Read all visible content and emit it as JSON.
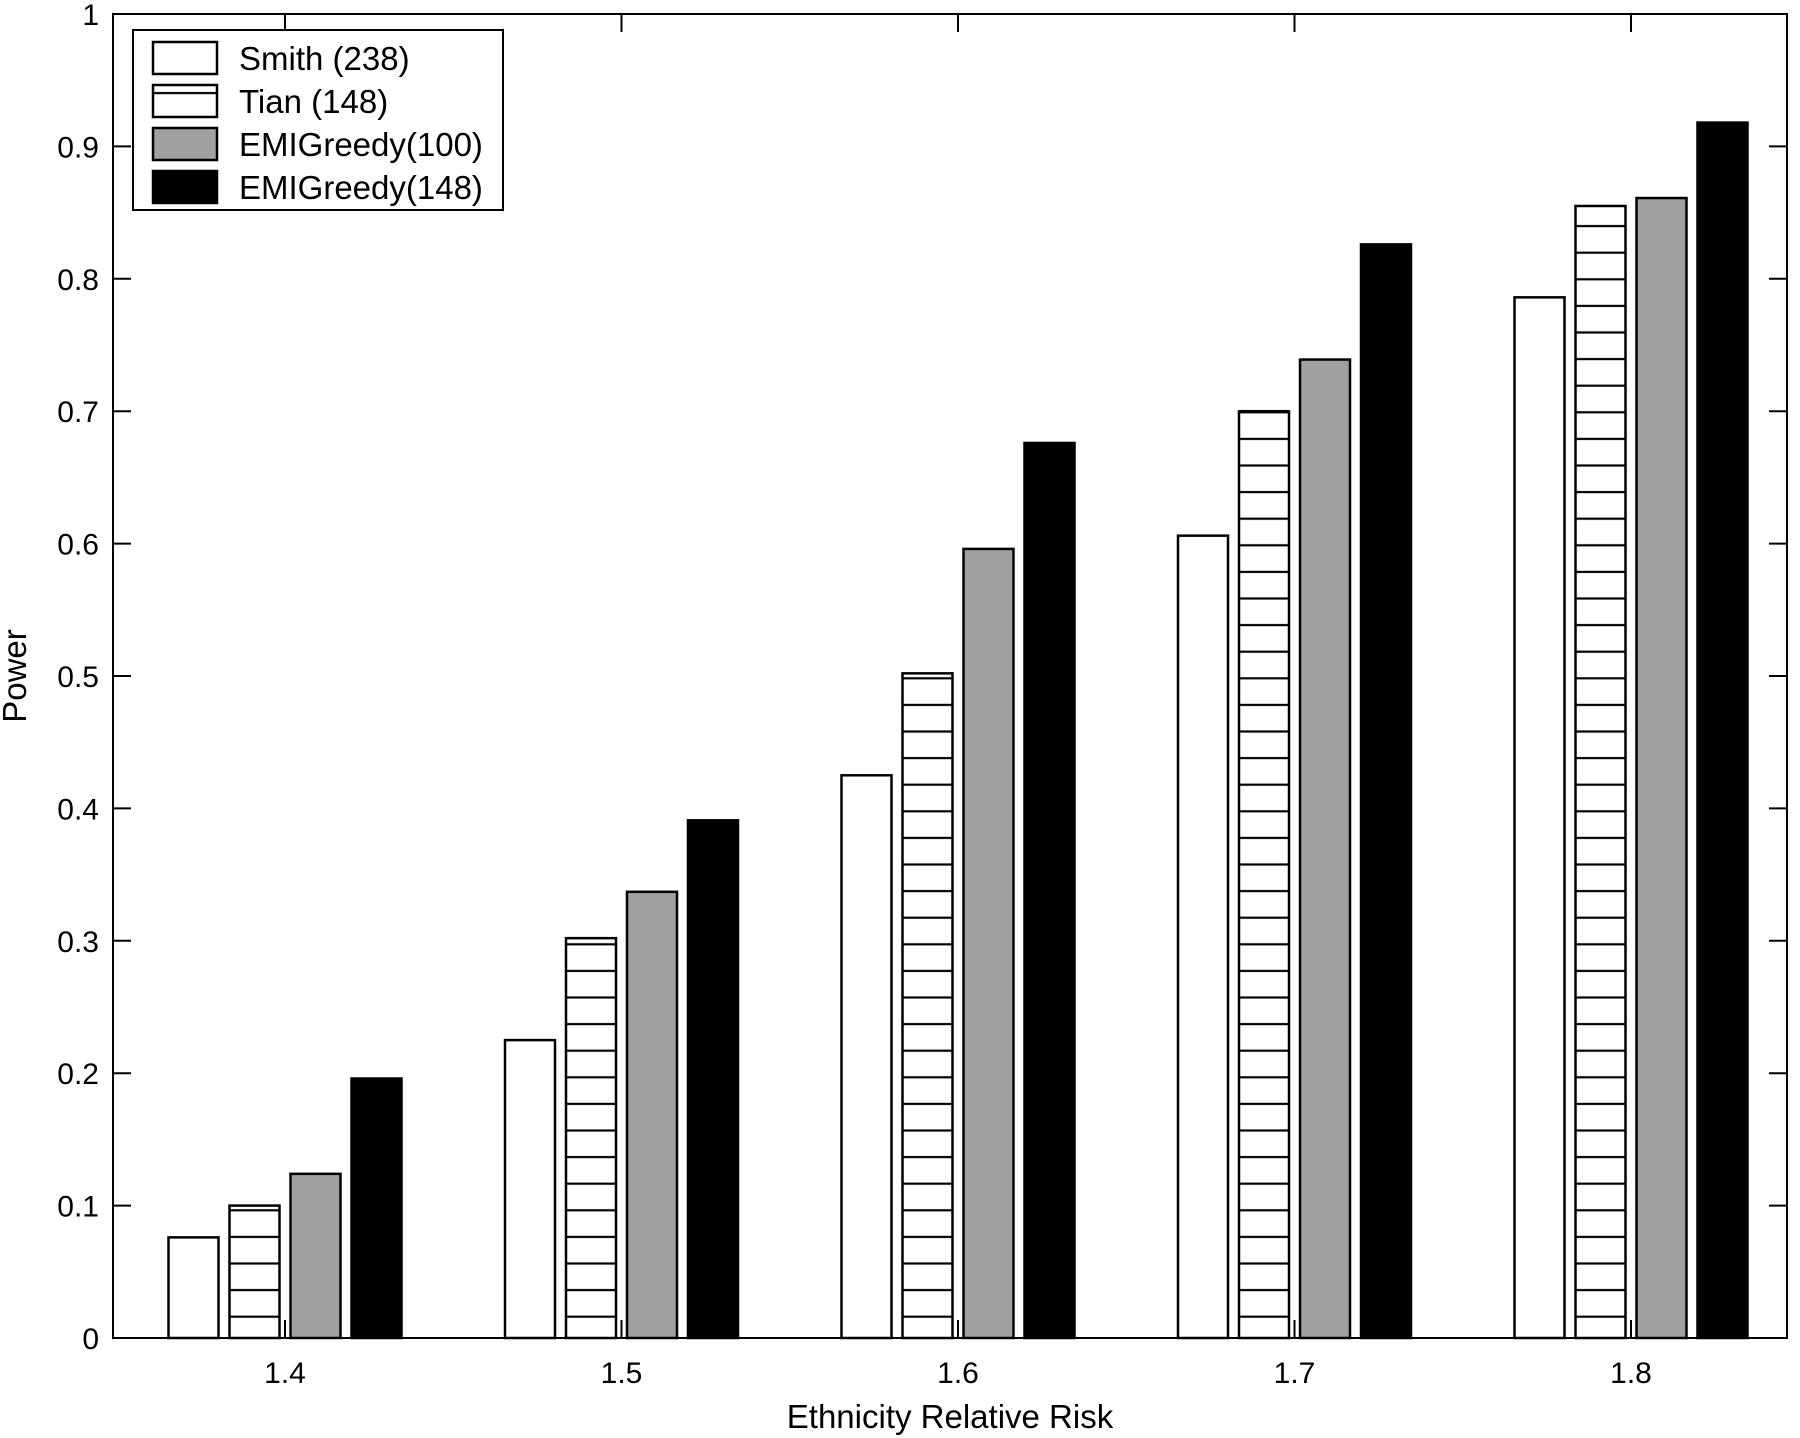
{
  "chart_data": {
    "type": "bar",
    "xlabel": "Ethnicity Relative Risk",
    "ylabel": "Power",
    "categories": [
      "1.4",
      "1.5",
      "1.6",
      "1.7",
      "1.8"
    ],
    "ylim": [
      0,
      1
    ],
    "yticks": [
      "0",
      "0.1",
      "0.2",
      "0.3",
      "0.4",
      "0.5",
      "0.6",
      "0.7",
      "0.8",
      "0.9",
      "1"
    ],
    "legend_position": "top-left",
    "grid": false,
    "series": [
      {
        "name": "Smith (238)",
        "style": "white",
        "values": [
          0.076,
          0.225,
          0.425,
          0.606,
          0.786
        ]
      },
      {
        "name": "Tian (148)",
        "style": "hatched",
        "values": [
          0.1,
          0.302,
          0.502,
          0.7,
          0.855
        ]
      },
      {
        "name": "EMIGreedy(100)",
        "style": "gray",
        "values": [
          0.124,
          0.337,
          0.596,
          0.739,
          0.861
        ]
      },
      {
        "name": "EMIGreedy(148)",
        "style": "black",
        "values": [
          0.196,
          0.391,
          0.676,
          0.826,
          0.918
        ]
      }
    ],
    "colors": {
      "white": "#ffffff",
      "gray": "#a0a0a0",
      "black": "#000000",
      "stroke": "#000000"
    }
  }
}
